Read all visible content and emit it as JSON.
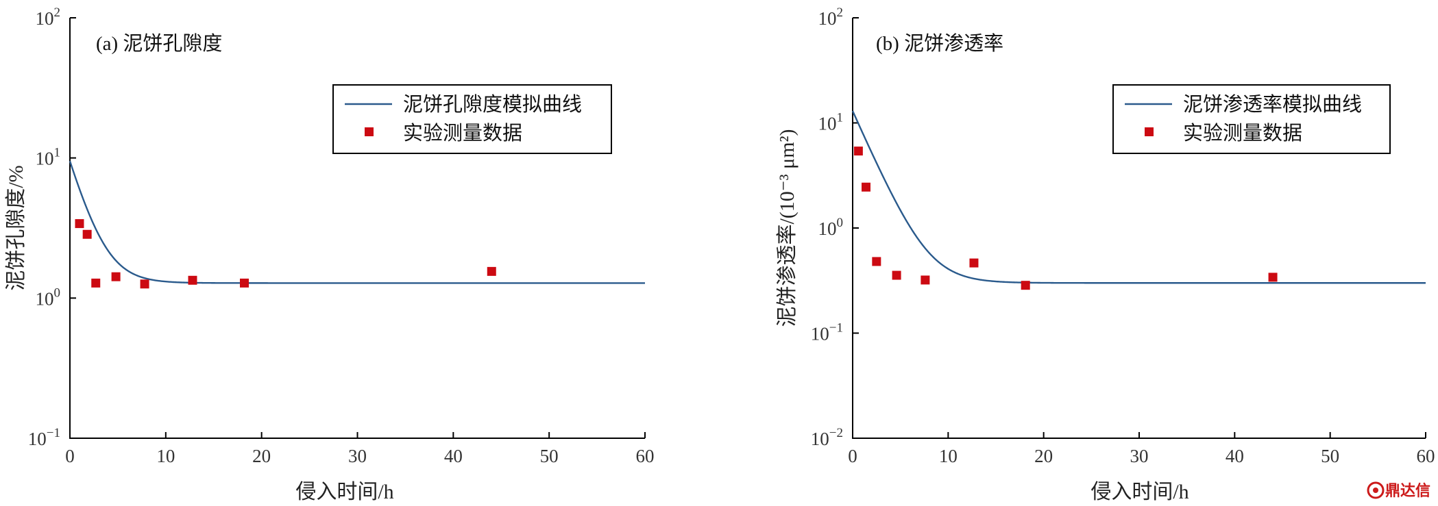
{
  "chart_data": [
    {
      "type": "line",
      "title": "(a) 泥饼孔隙度",
      "xlabel": "侵入时间/h",
      "ylabel": "泥饼孔隙度/%",
      "xlim": [
        0,
        60
      ],
      "ylim": [
        0.1,
        100
      ],
      "yscale": "log",
      "x_ticks": [
        0,
        10,
        20,
        30,
        40,
        50,
        60
      ],
      "y_tick_exponents": [
        "−1",
        "0",
        "1",
        "2"
      ],
      "legend_position": "top-right",
      "curve_model": {
        "y0": 9.5,
        "y_inf": 1.28,
        "tau": 1.8
      },
      "series": [
        {
          "name": "泥饼孔隙度模拟曲线",
          "kind": "line",
          "color": "#2a5a8c"
        },
        {
          "name": "实验测量数据",
          "kind": "scatter",
          "color": "#cc0a12",
          "x": [
            1.0,
            1.8,
            2.7,
            4.8,
            7.8,
            12.8,
            18.2,
            44.0
          ],
          "y": [
            3.4,
            2.85,
            1.28,
            1.42,
            1.26,
            1.34,
            1.28,
            1.55
          ]
        }
      ]
    },
    {
      "type": "line",
      "title": "(b) 泥饼渗透率",
      "xlabel": "侵入时间/h",
      "ylabel": "泥饼渗透率/(10⁻³ μm²)",
      "xlim": [
        0,
        60
      ],
      "ylim": [
        0.01,
        100
      ],
      "yscale": "log",
      "x_ticks": [
        0,
        10,
        20,
        30,
        40,
        50,
        60
      ],
      "y_tick_exponents": [
        "−2",
        "−1",
        "0",
        "1",
        "2"
      ],
      "legend_position": "top-right",
      "curve_model": {
        "y0": 13.0,
        "y_inf": 0.3,
        "tau": 2.1
      },
      "series": [
        {
          "name": "泥饼渗透率模拟曲线",
          "kind": "line",
          "color": "#2a5a8c"
        },
        {
          "name": "实验测量数据",
          "kind": "scatter",
          "color": "#cc0a12",
          "x": [
            0.6,
            1.4,
            2.5,
            4.6,
            7.6,
            12.7,
            18.1,
            44.0
          ],
          "y": [
            5.4,
            2.45,
            0.48,
            0.355,
            0.32,
            0.465,
            0.285,
            0.34
          ]
        }
      ]
    }
  ],
  "watermark": {
    "text": "鼎达信",
    "brand_color": "#cc1a1a"
  }
}
